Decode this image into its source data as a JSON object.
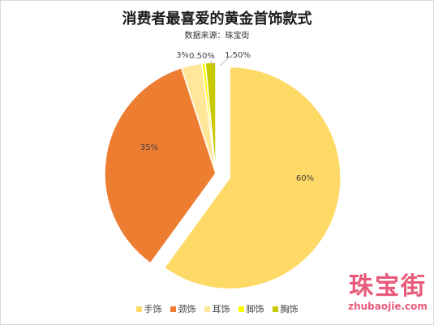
{
  "chart_data": {
    "type": "pie",
    "title": "消费者最喜爱的黄金首饰款式",
    "subtitle": "数据来源：珠宝街",
    "categories": [
      "手饰",
      "颈饰",
      "耳饰",
      "脚饰",
      "胸饰"
    ],
    "values": [
      60,
      35,
      3,
      0.5,
      1.5
    ],
    "labels": [
      "60%",
      "35%",
      "3%",
      "0.50%",
      "1.50%"
    ],
    "colors": [
      "#ffd966",
      "#ed7d31",
      "#ffe699",
      "#ffff00",
      "#c9c900"
    ],
    "legend_position": "bottom"
  },
  "watermark": {
    "text_cn": "珠宝街",
    "text_en": "zhubaojie.com"
  }
}
